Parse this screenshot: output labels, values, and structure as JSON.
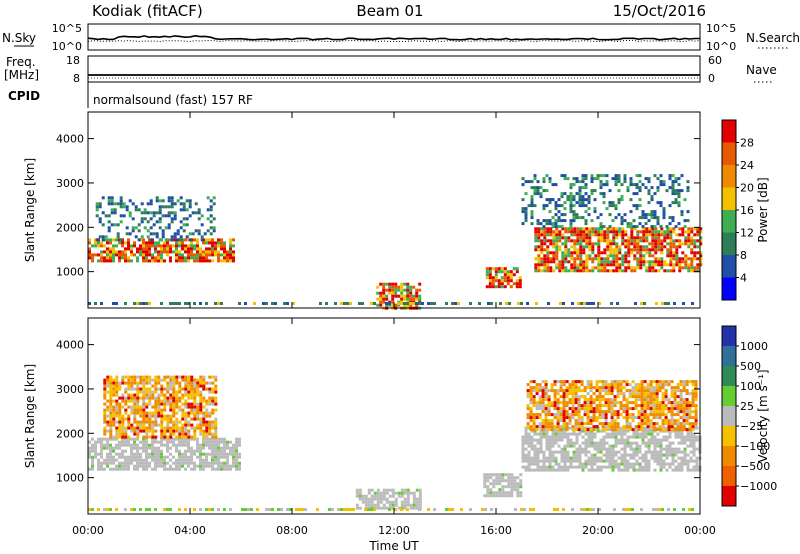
{
  "header": {
    "station": "Kodiak (fitACF)",
    "beam": "Beam 01",
    "date": "15/Oct/2016"
  },
  "nsky_panel": {
    "left_label": "N.Sky",
    "right_label": "N.Search",
    "left_ticks": [
      "10^5",
      "10^0"
    ],
    "right_ticks": [
      "10^5",
      "10^0"
    ]
  },
  "freq_panel": {
    "left_label_1": "Freq.",
    "left_label_2": "[MHz]",
    "right_label": "Nave",
    "left_ticks": [
      "18",
      "8"
    ],
    "right_ticks": [
      "60",
      "0"
    ]
  },
  "cpid_panel": {
    "label": "CPID",
    "text": "normalsound (fast) 157 RF"
  },
  "colors": {
    "power_scale": [
      "#0000ff",
      "#1f4fa6",
      "#2e7d58",
      "#3fae52",
      "#f2c200",
      "#f08a00",
      "#e85a00",
      "#e00000"
    ],
    "velocity_scale": [
      "#2233aa",
      "#2f6f9a",
      "#2e8b57",
      "#66cc33",
      "#bbbbbb",
      "#f5c000",
      "#f08a00",
      "#f06000",
      "#e00000"
    ]
  },
  "chart_data": [
    {
      "type": "heatmap",
      "name": "power",
      "ylabel": "Slant Range [km]",
      "xlabel": "",
      "x_ticks": [
        "00:00",
        "04:00",
        "08:00",
        "12:00",
        "16:00",
        "20:00",
        "00:00"
      ],
      "y_ticks": [
        "1000",
        "2000",
        "3000",
        "4000"
      ],
      "xlim_hours": [
        0,
        24
      ],
      "ylim_km": [
        180,
        4600
      ],
      "colorbar": {
        "label": "Power [dB]",
        "ticks": [
          "4",
          "8",
          "12",
          "16",
          "20",
          "24",
          "28"
        ]
      },
      "regions": [
        {
          "t0": 0.0,
          "t1": 5.7,
          "r0": 1250,
          "r1": 1750,
          "level": "high"
        },
        {
          "t0": 0.3,
          "t1": 5.0,
          "r0": 1750,
          "r1": 2700,
          "level": "low"
        },
        {
          "t0": 11.3,
          "t1": 13.0,
          "r0": 180,
          "r1": 750,
          "level": "high"
        },
        {
          "t0": 15.6,
          "t1": 17.0,
          "r0": 650,
          "r1": 1100,
          "level": "high"
        },
        {
          "t0": 17.5,
          "t1": 24.0,
          "r0": 1050,
          "r1": 2000,
          "level": "high"
        },
        {
          "t0": 17.0,
          "t1": 23.5,
          "r0": 2000,
          "r1": 3200,
          "level": "low"
        }
      ]
    },
    {
      "type": "heatmap",
      "name": "velocity",
      "ylabel": "Slant Range [km]",
      "xlabel": "Time UT",
      "x_ticks": [
        "00:00",
        "04:00",
        "08:00",
        "12:00",
        "16:00",
        "20:00",
        "00:00"
      ],
      "y_ticks": [
        "1000",
        "2000",
        "3000",
        "4000"
      ],
      "xlim_hours": [
        0,
        24
      ],
      "ylim_km": [
        180,
        4600
      ],
      "colorbar": {
        "label": "Velocity [m s⁻¹]",
        "ticks": [
          "1000",
          "500",
          "100",
          "25",
          "−25",
          "−100",
          "−500",
          "−1000"
        ]
      },
      "regions": [
        {
          "t0": 0.0,
          "t1": 6.0,
          "r0": 1200,
          "r1": 1900,
          "level": "ground"
        },
        {
          "t0": 0.6,
          "t1": 5.0,
          "r0": 1900,
          "r1": 3300,
          "level": "negative"
        },
        {
          "t0": 10.5,
          "t1": 13.0,
          "r0": 300,
          "r1": 750,
          "level": "ground"
        },
        {
          "t0": 15.5,
          "t1": 17.0,
          "r0": 600,
          "r1": 1100,
          "level": "ground"
        },
        {
          "t0": 17.0,
          "t1": 24.0,
          "r0": 1150,
          "r1": 2150,
          "level": "ground"
        },
        {
          "t0": 17.2,
          "t1": 23.8,
          "r0": 2100,
          "r1": 3200,
          "level": "negative"
        }
      ]
    }
  ]
}
